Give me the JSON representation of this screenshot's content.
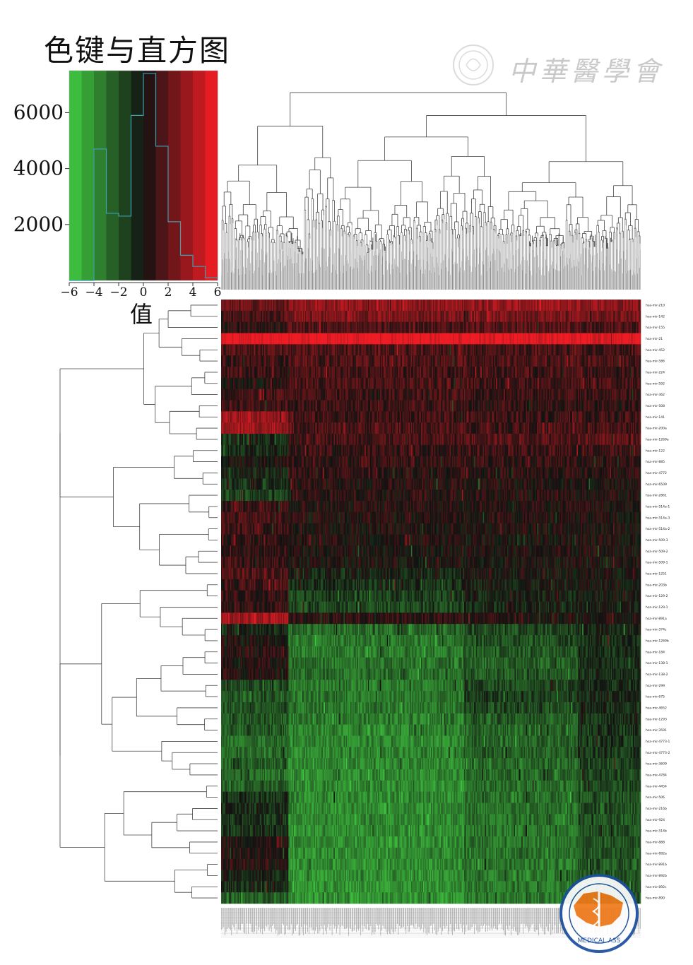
{
  "color_key": {
    "title": "色键与直方图",
    "xlabel": "值",
    "x_ticks": [
      "−6",
      "−4",
      "−2",
      "0",
      "2",
      "4",
      "6"
    ],
    "y_ticks": [
      "2000",
      "4000",
      "6000"
    ],
    "palette_low": "#3fc43f",
    "palette_mid": "#121212",
    "palette_high": "#ee1c24",
    "histogram_color": "#3a9fb0"
  },
  "watermark": {
    "text": "中華醫學會",
    "seal_text": "MEDICAL ASS",
    "seal_colors": {
      "ring": "#1a4f9c",
      "map": "#f07a1a"
    }
  },
  "chart_data": {
    "type": "heatmap",
    "x_range": [
      -6,
      6
    ],
    "ylim": [
      0,
      7500
    ],
    "histogram": {
      "bin_centers": [
        -5.5,
        -4.5,
        -3.5,
        -2.5,
        -1.5,
        -0.5,
        0.5,
        1.5,
        2.5,
        3.5,
        4.5,
        5.5
      ],
      "counts": [
        0,
        0,
        4700,
        2400,
        2300,
        5900,
        7400,
        4800,
        2100,
        900,
        500,
        100
      ]
    },
    "row_labels": [
      "hsa-mir-210",
      "hsa-mir-142",
      "hsa-mir-155",
      "hsa-mir-21",
      "hsa-mir-452",
      "hsa-mir-586",
      "hsa-mir-224",
      "hsa-mir-592",
      "hsa-mir-362",
      "hsa-mir-508",
      "hsa-mir-141",
      "hsa-mir-200a",
      "hsa-mir-1269a",
      "hsa-mir-122",
      "hsa-mir-885",
      "hsa-mir-4772",
      "hsa-mir-6509",
      "hsa-mir-2861",
      "hsa-mir-514a-1",
      "hsa-mir-514a-3",
      "hsa-mir-514a-2",
      "hsa-mir-509-3",
      "hsa-mir-509-2",
      "hsa-mir-509-1",
      "hsa-mir-1251",
      "hsa-mir-203b",
      "hsa-mir-129-2",
      "hsa-mir-129-1",
      "hsa-mir-891a",
      "hsa-mir-374c",
      "hsa-mir-1269b",
      "hsa-mir-184",
      "hsa-mir-138-1",
      "hsa-mir-138-2",
      "hsa-mir-299",
      "hsa-mir-675",
      "hsa-mir-4652",
      "hsa-mir-1293",
      "hsa-mir-3591",
      "hsa-mir-4773-1",
      "hsa-mir-4773-2",
      "hsa-mir-3609",
      "hsa-mir-4784",
      "hsa-mir-4454",
      "hsa-mir-506",
      "hsa-mir-216b",
      "hsa-mir-924",
      "hsa-mir-514b",
      "hsa-mir-888",
      "hsa-mir-892a",
      "hsa-mir-891b",
      "hsa-mir-892b",
      "hsa-mir-892c",
      "hsa-mir-890"
    ],
    "row_profiles": [
      [
        2.4,
        3.4,
        3.6,
        3.5
      ],
      [
        1.6,
        2.9,
        2.8,
        2.7
      ],
      [
        0.7,
        1.6,
        1.8,
        1.6
      ],
      [
        6.0,
        6.0,
        6.0,
        6.0
      ],
      [
        1.6,
        1.6,
        1.5,
        1.4
      ],
      [
        1.2,
        1.6,
        1.6,
        1.5
      ],
      [
        1.2,
        1.4,
        1.3,
        1.1
      ],
      [
        0.4,
        1.5,
        1.4,
        1.3
      ],
      [
        1.3,
        1.3,
        1.2,
        1.1
      ],
      [
        1.4,
        1.1,
        0.8,
        0.7
      ],
      [
        3.8,
        1.2,
        1.2,
        1.1
      ],
      [
        3.8,
        1.5,
        1.4,
        1.3
      ],
      [
        -1.0,
        1.5,
        1.9,
        2.0
      ],
      [
        -0.8,
        1.0,
        1.1,
        1.0
      ],
      [
        0.2,
        0.9,
        0.9,
        0.8
      ],
      [
        -0.5,
        0.8,
        0.7,
        0.6
      ],
      [
        -1.0,
        0.5,
        0.4,
        0.3
      ],
      [
        -1.5,
        0.6,
        0.5,
        0.4
      ],
      [
        1.2,
        0.5,
        0.5,
        0.4
      ],
      [
        1.4,
        0.4,
        0.4,
        0.3
      ],
      [
        1.2,
        0.3,
        0.3,
        0.3
      ],
      [
        1.0,
        0.3,
        0.2,
        0.2
      ],
      [
        0.9,
        0.2,
        0.2,
        0.2
      ],
      [
        1.0,
        0.1,
        0.1,
        0.1
      ],
      [
        1.8,
        -0.5,
        0.0,
        0.1
      ],
      [
        1.4,
        -1.0,
        -0.2,
        0.0
      ],
      [
        1.0,
        -1.5,
        -0.4,
        -0.1
      ],
      [
        0.8,
        -1.8,
        -0.6,
        -0.3
      ],
      [
        4.0,
        0.8,
        0.5,
        0.4
      ],
      [
        -0.5,
        -3.0,
        -1.8,
        -0.6
      ],
      [
        0.2,
        -3.3,
        -2.0,
        -0.8
      ],
      [
        0.6,
        -3.4,
        -2.4,
        -0.8
      ],
      [
        0.5,
        -3.2,
        -2.6,
        -0.9
      ],
      [
        0.4,
        -3.0,
        -2.3,
        -0.8
      ],
      [
        -2.0,
        -3.4,
        -1.8,
        -0.8
      ],
      [
        -2.0,
        -3.3,
        -1.4,
        -0.6
      ],
      [
        -2.2,
        -3.4,
        -1.8,
        -0.8
      ],
      [
        -2.2,
        -3.5,
        -2.4,
        -1.0
      ],
      [
        -2.4,
        -3.8,
        -2.8,
        -1.0
      ],
      [
        -3.0,
        -3.8,
        -2.7,
        -1.2
      ],
      [
        -3.0,
        -3.8,
        -2.5,
        -1.2
      ],
      [
        -2.6,
        -3.9,
        -2.8,
        -1.6
      ],
      [
        -2.8,
        -3.9,
        -2.9,
        -1.8
      ],
      [
        -2.5,
        -4.0,
        -3.0,
        -1.8
      ],
      [
        -1.0,
        -4.0,
        -3.0,
        -2.0
      ],
      [
        -0.8,
        -4.0,
        -3.1,
        -2.0
      ],
      [
        -1.2,
        -4.0,
        -3.2,
        -2.1
      ],
      [
        -1.0,
        -4.1,
        -3.2,
        -2.2
      ],
      [
        0.4,
        -4.0,
        -3.2,
        -2.2
      ],
      [
        0.5,
        -4.1,
        -3.2,
        -2.2
      ],
      [
        0.5,
        -4.1,
        -3.3,
        -2.3
      ],
      [
        -0.5,
        -4.2,
        -3.3,
        -2.3
      ],
      [
        -0.8,
        -4.2,
        -3.3,
        -2.3
      ],
      [
        -2.5,
        -4.3,
        -3.4,
        -2.4
      ]
    ],
    "column_group_fractions": [
      0.16,
      0.42,
      0.27,
      0.15
    ]
  }
}
